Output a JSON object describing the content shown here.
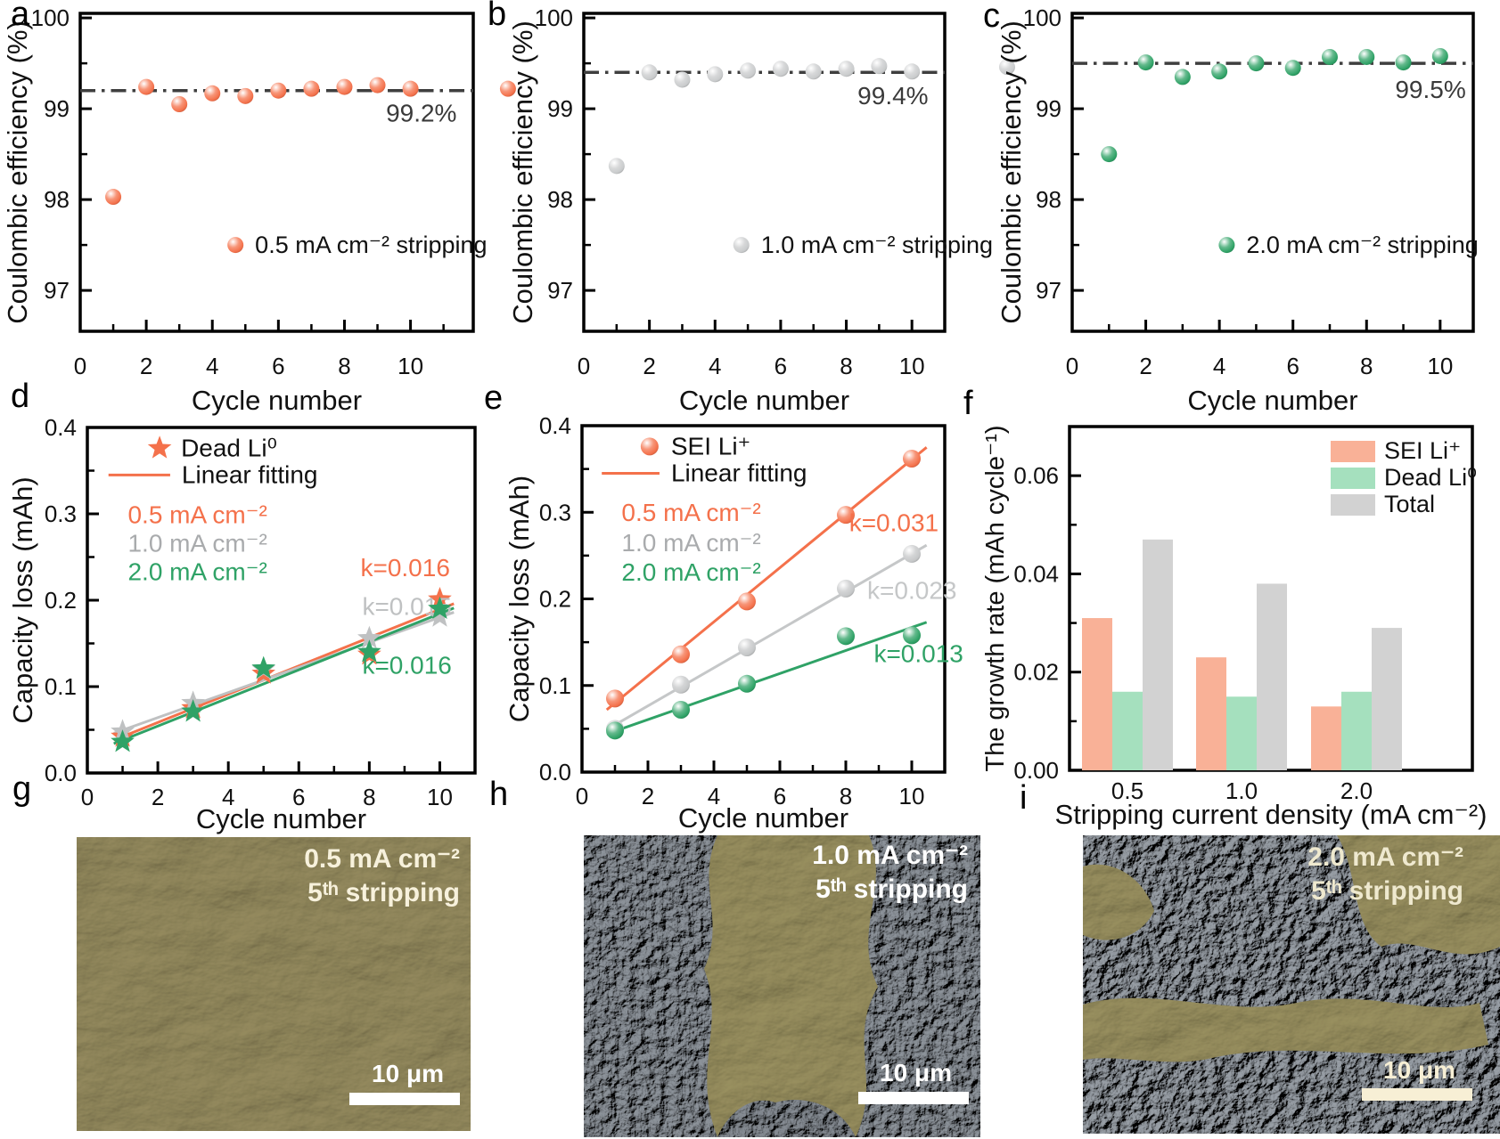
{
  "panel_letters": [
    "a",
    "b",
    "c",
    "d",
    "e",
    "f",
    "g",
    "h",
    "i"
  ],
  "colors": {
    "orange": "#F4714B",
    "gray_marker": "#C9CBCC",
    "green": "#2FA266",
    "bar_salmon": "#F9B197",
    "bar_green": "#A5E0BE",
    "bar_gray": "#D2D2D2",
    "ref_line": "#3F3F3F"
  },
  "chart_data": [
    {
      "id": "a",
      "type": "scatter",
      "xlabel": "Cycle number",
      "ylabel": "Coulombic efficiency (%)",
      "xlim": [
        0,
        11.9
      ],
      "ylim": [
        96.55,
        100.05
      ],
      "xticks": [
        0,
        2,
        4,
        6,
        8,
        10
      ],
      "xtick_labels": [
        "0",
        "2",
        "4",
        "6",
        "8",
        "10"
      ],
      "xminor": [
        1,
        3,
        5,
        7,
        9,
        11
      ],
      "yticks": [
        97,
        98,
        99,
        100
      ],
      "ytick_labels": [
        "97",
        "98",
        "99",
        "100"
      ],
      "yminor": [
        97.5,
        98.5,
        99.5
      ],
      "series": [
        {
          "name": "0.5 mA cm⁻² stripping",
          "color": "#F4714B",
          "x": [
            1,
            2,
            3,
            4,
            5,
            6,
            7,
            8,
            9,
            10
          ],
          "y": [
            98.03,
            99.24,
            99.05,
            99.17,
            99.14,
            99.2,
            99.22,
            99.24,
            99.26,
            99.22
          ],
          "extra_point": [
            12.95,
            99.22
          ]
        }
      ],
      "ref_line": {
        "y": 99.2,
        "label": "99.2%",
        "label_x": 11.4,
        "label_y": 98.86
      },
      "legend": {
        "marker_x": 4.7,
        "marker_y": 97.5,
        "label": "0.5 mA cm⁻² stripping"
      }
    },
    {
      "id": "b",
      "type": "scatter",
      "xlabel": "Cycle number",
      "ylabel": "Coulombic efficiency (%)",
      "xlim": [
        0,
        11
      ],
      "ylim": [
        96.55,
        100.05
      ],
      "xticks": [
        0,
        2,
        4,
        6,
        8,
        10
      ],
      "xtick_labels": [
        "0",
        "2",
        "4",
        "6",
        "8",
        "10"
      ],
      "xminor": [
        1,
        3,
        5,
        7,
        9
      ],
      "yticks": [
        97,
        98,
        99,
        100
      ],
      "ytick_labels": [
        "97",
        "98",
        "99",
        "100"
      ],
      "yminor": [
        97.5,
        98.5,
        99.5
      ],
      "series": [
        {
          "name": "1.0 mA cm⁻² stripping",
          "color": "#C9CBCC",
          "x": [
            1,
            2,
            3,
            4,
            5,
            6,
            7,
            8,
            9,
            10
          ],
          "y": [
            98.37,
            99.4,
            99.32,
            99.38,
            99.42,
            99.44,
            99.41,
            99.44,
            99.47,
            99.41
          ],
          "extra_point": [
            12.9,
            99.46
          ]
        }
      ],
      "ref_line": {
        "y": 99.4,
        "label": "99.4%",
        "label_x": 10.5,
        "label_y": 99.05
      },
      "legend": {
        "marker_x": 4.8,
        "marker_y": 97.5,
        "label": "1.0 mA cm⁻² stripping"
      }
    },
    {
      "id": "c",
      "type": "scatter",
      "xlabel": "Cycle number",
      "ylabel": "Coulombic efficiency (%)",
      "xlim": [
        0,
        10.9
      ],
      "ylim": [
        96.55,
        100.05
      ],
      "xticks": [
        0,
        2,
        4,
        6,
        8,
        10
      ],
      "xtick_labels": [
        "0",
        "2",
        "4",
        "6",
        "8",
        "10"
      ],
      "xminor": [
        1,
        3,
        5,
        7,
        9
      ],
      "yticks": [
        97,
        98,
        99,
        100
      ],
      "ytick_labels": [
        "97",
        "98",
        "99",
        "100"
      ],
      "yminor": [
        97.5,
        98.5,
        99.5
      ],
      "series": [
        {
          "name": "2.0 mA cm⁻² stripping",
          "color": "#2FA266",
          "x": [
            1,
            2,
            3,
            4,
            5,
            6,
            7,
            8,
            9,
            10
          ],
          "y": [
            98.5,
            99.51,
            99.35,
            99.41,
            99.5,
            99.45,
            99.57,
            99.57,
            99.51,
            99.58
          ]
        }
      ],
      "ref_line": {
        "y": 99.5,
        "label": "99.5%",
        "label_x": 10.7,
        "label_y": 99.12
      },
      "legend": {
        "marker_x": 4.2,
        "marker_y": 97.5,
        "label": "2.0 mA cm⁻² stripping"
      }
    },
    {
      "id": "d",
      "type": "scatter-line",
      "marker": "star",
      "xlabel": "Cycle number",
      "ylabel": "Capacity loss (mAh)",
      "xlim": [
        0,
        11
      ],
      "ylim": [
        0,
        0.4
      ],
      "xticks": [
        0,
        2,
        4,
        6,
        8,
        10
      ],
      "xtick_labels": [
        "0",
        "2",
        "4",
        "6",
        "8",
        "10"
      ],
      "xminor": [
        1,
        3,
        5,
        7,
        9
      ],
      "yticks": [
        0,
        0.1,
        0.2,
        0.3,
        0.4
      ],
      "ytick_labels": [
        "0.0",
        "0.1",
        "0.2",
        "0.3",
        "0.4"
      ],
      "yminor": [
        0.05,
        0.15,
        0.25,
        0.35
      ],
      "legend": {
        "marker_x": 2.05,
        "marker_y": 0.376,
        "marker_label": "Dead Li⁰",
        "line_x1": 0.6,
        "line_x2": 2.35,
        "line_y": 0.345,
        "line_label": "Linear fitting"
      },
      "condition_labels": [
        {
          "text": "0.5 mA cm⁻²",
          "color": "#F4714B",
          "x": 1.15,
          "y": 0.289
        },
        {
          "text": "1.0 mA cm⁻²",
          "color": "#A9ABAD",
          "x": 1.15,
          "y": 0.256
        },
        {
          "text": "2.0 mA cm⁻²",
          "color": "#2FA266",
          "x": 1.15,
          "y": 0.223
        }
      ],
      "series": [
        {
          "name": "0.5 mA cm⁻²",
          "color": "#F4714B",
          "x": [
            1,
            3,
            5,
            8,
            10
          ],
          "y": [
            0.042,
            0.075,
            0.115,
            0.137,
            0.201
          ],
          "fit": [
            [
              0.75,
              0.038
            ],
            [
              10.4,
              0.196
            ]
          ],
          "k_label": {
            "text": "k=0.016",
            "x": 7.75,
            "y": 0.228
          }
        },
        {
          "name": "1.0 mA cm⁻²",
          "color": "#BFC1C2",
          "x": [
            1,
            3,
            5,
            8,
            10
          ],
          "y": [
            0.048,
            0.081,
            0.12,
            0.156,
            0.181
          ],
          "fit": [
            [
              0.75,
              0.046
            ],
            [
              10.4,
              0.186
            ]
          ],
          "k_label": {
            "text": "k=0.015",
            "x": 7.8,
            "y": 0.183
          }
        },
        {
          "name": "2.0 mA cm⁻²",
          "color": "#2FA266",
          "x": [
            1,
            3,
            5,
            8,
            10
          ],
          "y": [
            0.036,
            0.071,
            0.121,
            0.14,
            0.19
          ],
          "fit": [
            [
              0.75,
              0.034
            ],
            [
              10.4,
              0.191
            ]
          ],
          "k_label": {
            "text": "k=0.016",
            "x": 7.8,
            "y": 0.115
          }
        }
      ]
    },
    {
      "id": "e",
      "type": "scatter-line",
      "marker": "sphere",
      "xlabel": "Cycle number",
      "ylabel": "Capacity loss (mAh)",
      "xlim": [
        0,
        11
      ],
      "ylim": [
        0,
        0.4
      ],
      "xticks": [
        0,
        2,
        4,
        6,
        8,
        10
      ],
      "xtick_labels": [
        "0",
        "2",
        "4",
        "6",
        "8",
        "10"
      ],
      "xminor": [
        1,
        3,
        5,
        7,
        9
      ],
      "yticks": [
        0,
        0.1,
        0.2,
        0.3,
        0.4
      ],
      "ytick_labels": [
        "0.0",
        "0.1",
        "0.2",
        "0.3",
        "0.4"
      ],
      "yminor": [
        0.05,
        0.15,
        0.25,
        0.35
      ],
      "legend": {
        "marker_x": 2.05,
        "marker_y": 0.376,
        "marker_label": "SEI Li⁺",
        "line_x1": 0.6,
        "line_x2": 2.35,
        "line_y": 0.345,
        "line_label": "Linear fitting"
      },
      "condition_labels": [
        {
          "text": "0.5 mA cm⁻²",
          "color": "#F4714B",
          "x": 1.2,
          "y": 0.29
        },
        {
          "text": "1.0 mA cm⁻²",
          "color": "#A9ABAD",
          "x": 1.2,
          "y": 0.255
        },
        {
          "text": "2.0 mA cm⁻²",
          "color": "#2FA266",
          "x": 1.2,
          "y": 0.221
        }
      ],
      "series": [
        {
          "name": "0.5 mA cm⁻²",
          "color": "#F4714B",
          "x": [
            1,
            3,
            5,
            8,
            10
          ],
          "y": [
            0.085,
            0.136,
            0.197,
            0.297,
            0.362
          ],
          "fit": [
            [
              0.75,
              0.072
            ],
            [
              10.45,
              0.375
            ]
          ],
          "k_label": {
            "text": "k=0.031",
            "x": 8.1,
            "y": 0.278
          }
        },
        {
          "name": "1.0 mA cm⁻²",
          "color": "#C5C7C8",
          "x": [
            1,
            3,
            5,
            8,
            10
          ],
          "y": [
            0.05,
            0.101,
            0.144,
            0.212,
            0.252
          ],
          "fit": [
            [
              0.75,
              0.049
            ],
            [
              10.45,
              0.262
            ]
          ],
          "k_label": {
            "text": "k=0.023",
            "x": 8.65,
            "y": 0.2
          }
        },
        {
          "name": "2.0 mA cm⁻²",
          "color": "#2FA266",
          "x": [
            1,
            3,
            5,
            8,
            10
          ],
          "y": [
            0.048,
            0.072,
            0.102,
            0.157,
            0.158
          ],
          "fit": [
            [
              0.75,
              0.044
            ],
            [
              10.45,
              0.173
            ]
          ],
          "k_label": {
            "text": "k=0.013",
            "x": 8.85,
            "y": 0.127
          }
        }
      ]
    },
    {
      "id": "f",
      "type": "bar",
      "xlabel": "Stripping current density (mA cm⁻²)",
      "ylabel": "The growth rate (mAh cycle⁻¹)",
      "categories": [
        "0.5",
        "1.0",
        "2.0"
      ],
      "ylim": [
        0,
        0.07
      ],
      "yticks": [
        0,
        0.02,
        0.04,
        0.06
      ],
      "ytick_labels": [
        "0.00",
        "0.02",
        "0.04",
        "0.06"
      ],
      "yminor": [
        0.01,
        0.03,
        0.05
      ],
      "series": [
        {
          "name": "SEI Li⁺",
          "color": "#F9B197",
          "values": [
            0.031,
            0.023,
            0.013
          ]
        },
        {
          "name": "Dead Li⁰",
          "color": "#A5E0BE",
          "values": [
            0.016,
            0.015,
            0.016
          ]
        },
        {
          "name": "Total",
          "color": "#D2D2D2",
          "values": [
            0.047,
            0.038,
            0.029
          ]
        }
      ],
      "legend_position": "top-right",
      "grid": false
    }
  ],
  "sem_panels": [
    {
      "id": "g",
      "label_line1": "0.5 mA cm⁻²",
      "label_line2": "5ᵗʰ stripping",
      "scale_bar": "10 μm",
      "label_color": "#F7F1DC",
      "scale_bar_color": "#FFFFFF",
      "tint": "#968C5F"
    },
    {
      "id": "h",
      "label_line1": "1.0 mA cm⁻²",
      "label_line2": "5ᵗʰ stripping",
      "scale_bar": "10 μm",
      "label_color": "#FFFFFF",
      "scale_bar_color": "#FFFFFF",
      "tint": "#9A9160"
    },
    {
      "id": "i",
      "label_line1": "2.0 mA cm⁻²",
      "label_line2": "5ᵗʰ stripping",
      "scale_bar": "10 μm",
      "label_color": "#EFE9CF",
      "scale_bar_color": "#F7EFD5",
      "tint": "#8F959C"
    }
  ]
}
